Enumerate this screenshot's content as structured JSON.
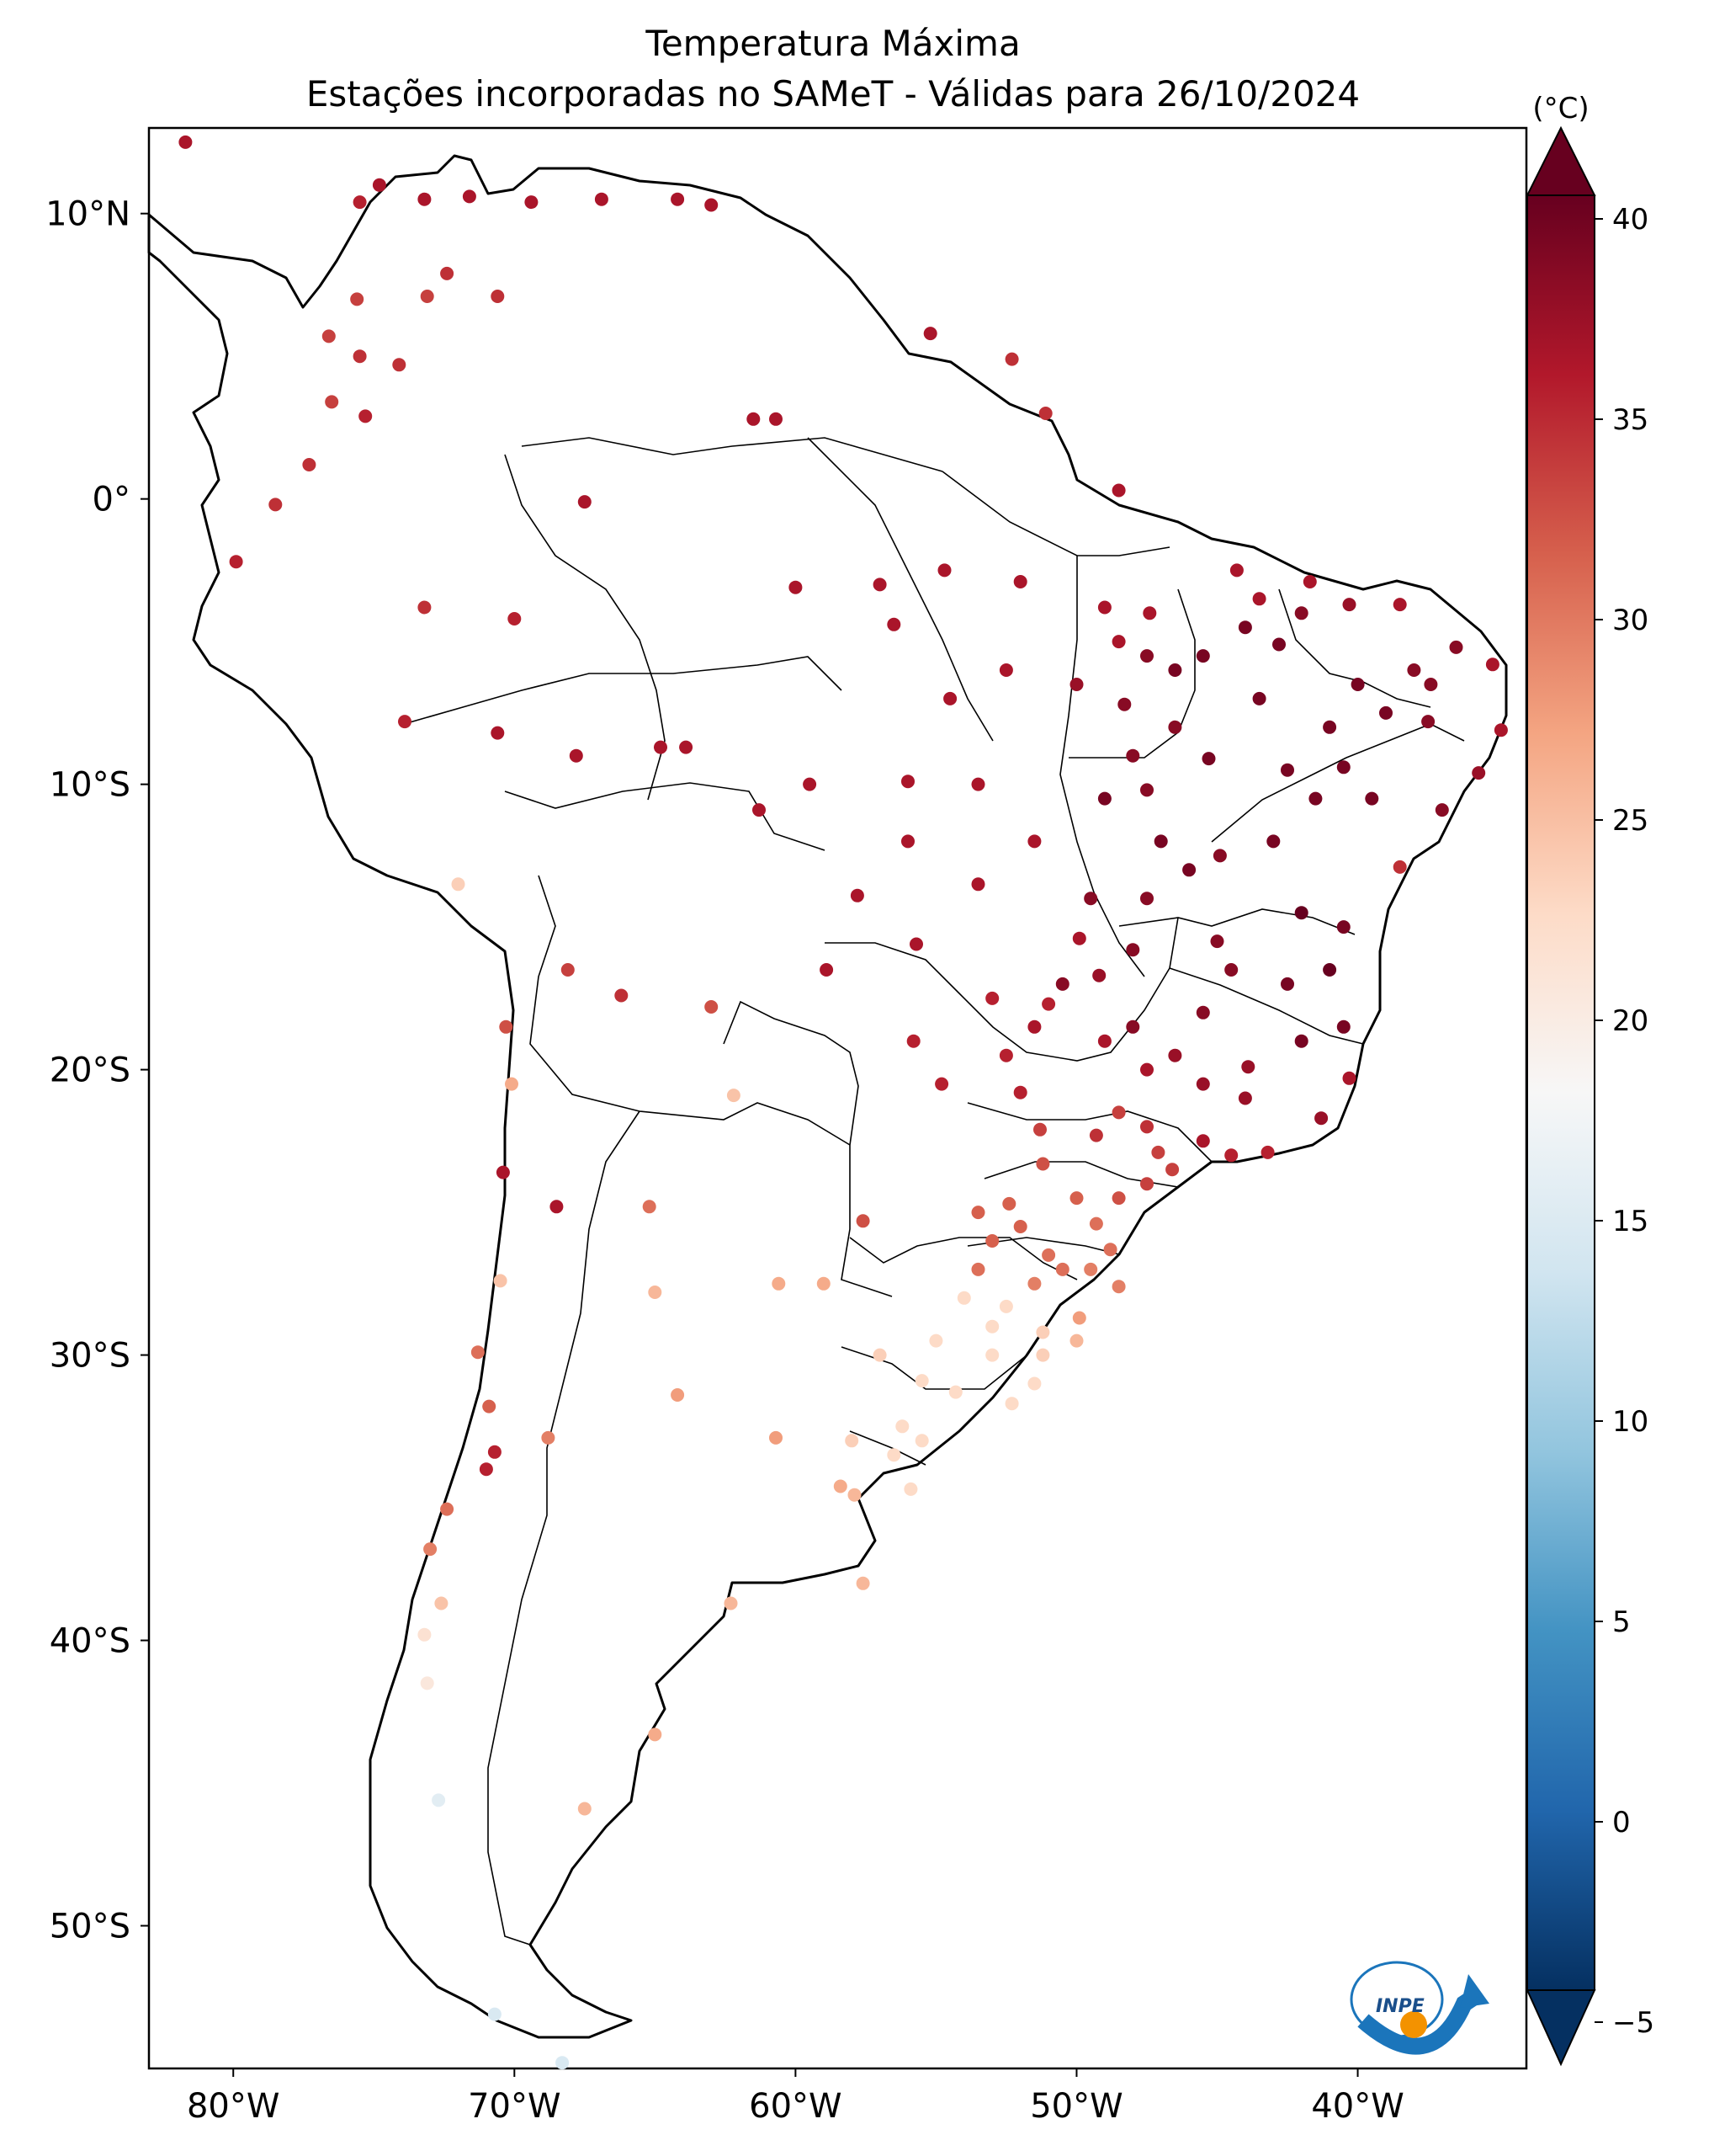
{
  "title": {
    "line1": "Temperatura Máxima",
    "line2": "Estações incorporadas no SAMeT - Válidas para 26/10/2024"
  },
  "map": {
    "lon_range": [
      -83,
      -34
    ],
    "lat_range": [
      -55,
      13
    ],
    "lat_ticks": [
      {
        "value": 10,
        "label": "10°N"
      },
      {
        "value": 0,
        "label": "0°"
      },
      {
        "value": -10,
        "label": "10°S"
      },
      {
        "value": -20,
        "label": "20°S"
      },
      {
        "value": -30,
        "label": "30°S"
      },
      {
        "value": -40,
        "label": "40°S"
      },
      {
        "value": -50,
        "label": "50°S"
      }
    ],
    "lon_ticks": [
      {
        "value": -80,
        "label": "80°W"
      },
      {
        "value": -70,
        "label": "70°W"
      },
      {
        "value": -60,
        "label": "60°W"
      },
      {
        "value": -50,
        "label": "50°W"
      },
      {
        "value": -40,
        "label": "40°W"
      }
    ],
    "logo_text": "INPE"
  },
  "colorbar": {
    "unit": "(°C)",
    "min": -5,
    "max": 40,
    "ticks": [
      -5,
      0,
      5,
      10,
      15,
      20,
      25,
      30,
      35,
      40
    ],
    "colors": [
      "#053061",
      "#2166ac",
      "#4393c3",
      "#92c5de",
      "#d1e5f0",
      "#f7f7f7",
      "#fddbc7",
      "#f4a582",
      "#d6604d",
      "#b2182b",
      "#67001f"
    ]
  },
  "stations": [
    [
      -81.7,
      12.5,
      36
    ],
    [
      -75.5,
      10.4,
      35
    ],
    [
      -74.8,
      11.0,
      36
    ],
    [
      -73.2,
      10.5,
      36
    ],
    [
      -71.6,
      10.6,
      36
    ],
    [
      -69.4,
      10.4,
      36
    ],
    [
      -66.9,
      10.5,
      36
    ],
    [
      -64.2,
      10.5,
      36
    ],
    [
      -63.0,
      10.3,
      36
    ],
    [
      -75.6,
      7.0,
      33
    ],
    [
      -73.1,
      7.1,
      33
    ],
    [
      -72.4,
      7.9,
      34
    ],
    [
      -70.6,
      7.1,
      34
    ],
    [
      -76.6,
      5.7,
      33
    ],
    [
      -75.5,
      5.0,
      34
    ],
    [
      -74.1,
      4.7,
      34
    ],
    [
      -76.5,
      3.4,
      33
    ],
    [
      -75.3,
      2.9,
      35
    ],
    [
      -77.3,
      1.2,
      34
    ],
    [
      -78.5,
      -0.2,
      34
    ],
    [
      -79.9,
      -2.2,
      35
    ],
    [
      -61.5,
      2.8,
      36
    ],
    [
      -55.2,
      5.8,
      36
    ],
    [
      -52.3,
      4.9,
      34
    ],
    [
      -51.1,
      3.0,
      34
    ],
    [
      -48.5,
      0.3,
      36
    ],
    [
      -60.7,
      2.8,
      36
    ],
    [
      -67.5,
      -0.1,
      36
    ],
    [
      -73.2,
      -3.8,
      34
    ],
    [
      -70.0,
      -4.2,
      35
    ],
    [
      -60.0,
      -3.1,
      36
    ],
    [
      -57.0,
      -3.0,
      36
    ],
    [
      -54.7,
      -2.5,
      36
    ],
    [
      -52.0,
      -2.9,
      36
    ],
    [
      -49.0,
      -3.8,
      36
    ],
    [
      -47.4,
      -4.0,
      36
    ],
    [
      -56.5,
      -4.4,
      36
    ],
    [
      -73.9,
      -7.8,
      35
    ],
    [
      -70.6,
      -8.2,
      36
    ],
    [
      -67.8,
      -9.0,
      36
    ],
    [
      -64.8,
      -8.7,
      36
    ],
    [
      -63.9,
      -8.7,
      36
    ],
    [
      -61.3,
      -10.9,
      36
    ],
    [
      -59.5,
      -10.0,
      36
    ],
    [
      -56.0,
      -9.9,
      36
    ],
    [
      -53.5,
      -10.0,
      36
    ],
    [
      -56.0,
      -12.0,
      36
    ],
    [
      -53.5,
      -13.5,
      36
    ],
    [
      -51.5,
      -12.0,
      36
    ],
    [
      -49.9,
      -15.4,
      36
    ],
    [
      -55.7,
      -15.6,
      36
    ],
    [
      -57.8,
      -13.9,
      36
    ],
    [
      -58.9,
      -16.5,
      36
    ],
    [
      -55.8,
      -19.0,
      35
    ],
    [
      -54.8,
      -20.5,
      35
    ],
    [
      -52.0,
      -20.8,
      35
    ],
    [
      -53.0,
      -17.5,
      35
    ],
    [
      -51.0,
      -17.7,
      35
    ],
    [
      -49.2,
      -16.7,
      37
    ],
    [
      -48.0,
      -15.8,
      38
    ],
    [
      -47.5,
      -14.0,
      38
    ],
    [
      -46.0,
      -13.0,
      39
    ],
    [
      -44.9,
      -12.5,
      38
    ],
    [
      -43.0,
      -12.0,
      39
    ],
    [
      -41.5,
      -10.5,
      39
    ],
    [
      -40.5,
      -9.4,
      39
    ],
    [
      -38.5,
      -12.9,
      34
    ],
    [
      -37.0,
      -10.9,
      38
    ],
    [
      -35.7,
      -9.6,
      37
    ],
    [
      -34.9,
      -8.1,
      36
    ],
    [
      -35.2,
      -5.8,
      36
    ],
    [
      -36.5,
      -5.2,
      38
    ],
    [
      -37.4,
      -6.5,
      38
    ],
    [
      -38.5,
      -3.7,
      36
    ],
    [
      -40.3,
      -3.7,
      37
    ],
    [
      -41.7,
      -2.9,
      36
    ],
    [
      -42.8,
      -5.1,
      39
    ],
    [
      -43.5,
      -7.0,
      39
    ],
    [
      -45.3,
      -9.1,
      39
    ],
    [
      -44.3,
      -2.5,
      36
    ],
    [
      -46.5,
      -6.0,
      39
    ],
    [
      -48.3,
      -7.2,
      38
    ],
    [
      -47.5,
      -10.2,
      38
    ],
    [
      -45.0,
      -15.5,
      38
    ],
    [
      -43.9,
      -19.9,
      37
    ],
    [
      -41.3,
      -21.7,
      37
    ],
    [
      -40.3,
      -20.3,
      36
    ],
    [
      -43.2,
      -22.9,
      35
    ],
    [
      -46.6,
      -23.5,
      33
    ],
    [
      -47.1,
      -22.9,
      33
    ],
    [
      -49.3,
      -22.3,
      34
    ],
    [
      -51.3,
      -22.1,
      33
    ],
    [
      -51.2,
      -23.3,
      32
    ],
    [
      -49.3,
      -25.4,
      30
    ],
    [
      -52.4,
      -24.7,
      31
    ],
    [
      -53.5,
      -25.0,
      31
    ],
    [
      -51.0,
      -26.5,
      30
    ],
    [
      -48.5,
      -27.6,
      29
    ],
    [
      -49.9,
      -28.7,
      27
    ],
    [
      -51.2,
      -29.2,
      23
    ],
    [
      -52.5,
      -28.3,
      22
    ],
    [
      -54.0,
      -28.0,
      22
    ],
    [
      -51.2,
      -30.0,
      23
    ],
    [
      -52.3,
      -31.7,
      22
    ],
    [
      -54.3,
      -31.3,
      22
    ],
    [
      -55.5,
      -30.9,
      22
    ],
    [
      -56.2,
      -32.5,
      22
    ],
    [
      -55.9,
      -34.7,
      22
    ],
    [
      -57.9,
      -34.9,
      25
    ],
    [
      -58.4,
      -34.6,
      26
    ],
    [
      -57.6,
      -38.0,
      25
    ],
    [
      -62.3,
      -38.7,
      25
    ],
    [
      -65.0,
      -43.3,
      26
    ],
    [
      -67.5,
      -45.9,
      25
    ],
    [
      -68.8,
      -32.9,
      29
    ],
    [
      -68.5,
      -24.8,
      36
    ],
    [
      -65.2,
      -24.8,
      30
    ],
    [
      -64.2,
      -31.4,
      27
    ],
    [
      -60.7,
      -32.9,
      27
    ],
    [
      -60.6,
      -27.5,
      26
    ],
    [
      -57.6,
      -25.3,
      32
    ],
    [
      -59.0,
      -27.5,
      26
    ],
    [
      -65.0,
      -27.8,
      25
    ],
    [
      -63.0,
      -17.8,
      32
    ],
    [
      -68.1,
      -16.5,
      33
    ],
    [
      -66.2,
      -17.4,
      34
    ],
    [
      -70.3,
      -18.5,
      32
    ],
    [
      -70.1,
      -20.5,
      26
    ],
    [
      -70.4,
      -23.6,
      36
    ],
    [
      -70.5,
      -27.4,
      24
    ],
    [
      -71.3,
      -29.9,
      30
    ],
    [
      -70.9,
      -31.8,
      31
    ],
    [
      -70.7,
      -33.4,
      35
    ],
    [
      -71.0,
      -34.0,
      35
    ],
    [
      -72.4,
      -35.4,
      30
    ],
    [
      -73.0,
      -36.8,
      29
    ],
    [
      -72.6,
      -38.7,
      24
    ],
    [
      -73.2,
      -39.8,
      21
    ],
    [
      -73.1,
      -41.5,
      20
    ],
    [
      -72.7,
      -45.6,
      15
    ],
    [
      -70.7,
      -53.1,
      14
    ],
    [
      -68.3,
      -54.8,
      14
    ],
    [
      -72.0,
      -13.5,
      23
    ],
    [
      -62.2,
      -20.9,
      24
    ],
    [
      -44.0,
      -4.5,
      39
    ],
    [
      -42.0,
      -4.0,
      38
    ],
    [
      -40.0,
      -6.5,
      39
    ],
    [
      -39.0,
      -7.5,
      39
    ],
    [
      -41.0,
      -8.0,
      39
    ],
    [
      -42.5,
      -9.5,
      39
    ],
    [
      -39.5,
      -10.5,
      39
    ],
    [
      -38.0,
      -6.0,
      38
    ],
    [
      -37.5,
      -7.8,
      38
    ],
    [
      -42.0,
      -14.5,
      40
    ],
    [
      -40.5,
      -15.0,
      39
    ],
    [
      -41.0,
      -16.5,
      40
    ],
    [
      -42.5,
      -17.0,
      39
    ],
    [
      -44.5,
      -16.5,
      38
    ],
    [
      -45.5,
      -18.0,
      38
    ],
    [
      -42.0,
      -19.0,
      39
    ],
    [
      -40.5,
      -18.5,
      39
    ],
    [
      -44.0,
      -21.0,
      37
    ],
    [
      -45.5,
      -20.5,
      37
    ],
    [
      -46.5,
      -19.5,
      37
    ],
    [
      -47.5,
      -20.0,
      36
    ],
    [
      -48.5,
      -21.5,
      33
    ],
    [
      -47.5,
      -22.0,
      34
    ],
    [
      -45.5,
      -22.5,
      36
    ],
    [
      -44.5,
      -23.0,
      35
    ],
    [
      -50.0,
      -24.5,
      31
    ],
    [
      -48.5,
      -24.5,
      32
    ],
    [
      -47.5,
      -24.0,
      33
    ],
    [
      -53.0,
      -26.0,
      31
    ],
    [
      -52.0,
      -25.5,
      31
    ],
    [
      -50.5,
      -27.0,
      30
    ],
    [
      -51.5,
      -27.5,
      29
    ],
    [
      -49.5,
      -27.0,
      29
    ],
    [
      -48.8,
      -26.3,
      30
    ],
    [
      -53.5,
      -27.0,
      30
    ],
    [
      -50.0,
      -29.5,
      25
    ],
    [
      -51.5,
      -31.0,
      22
    ],
    [
      -53.0,
      -30.0,
      22
    ],
    [
      -53.0,
      -29.0,
      22
    ],
    [
      -55.0,
      -29.5,
      22
    ],
    [
      -57.0,
      -30.0,
      23
    ],
    [
      -56.5,
      -33.5,
      22
    ],
    [
      -55.5,
      -33.0,
      22
    ],
    [
      -58.0,
      -33.0,
      23
    ],
    [
      -51.5,
      -18.5,
      36
    ],
    [
      -52.5,
      -19.5,
      35
    ],
    [
      -49.0,
      -19.0,
      36
    ],
    [
      -48.0,
      -18.5,
      38
    ],
    [
      -50.5,
      -17.0,
      38
    ],
    [
      -49.5,
      -14.0,
      38
    ],
    [
      -47.0,
      -12.0,
      39
    ],
    [
      -49.0,
      -10.5,
      39
    ],
    [
      -48.0,
      -9.0,
      38
    ],
    [
      -46.5,
      -8.0,
      38
    ],
    [
      -45.5,
      -5.5,
      39
    ],
    [
      -43.5,
      -3.5,
      36
    ],
    [
      -47.5,
      -5.5,
      38
    ],
    [
      -48.5,
      -5.0,
      36
    ],
    [
      -50.0,
      -6.5,
      37
    ],
    [
      -52.5,
      -6.0,
      36
    ],
    [
      -54.5,
      -7.0,
      36
    ]
  ]
}
